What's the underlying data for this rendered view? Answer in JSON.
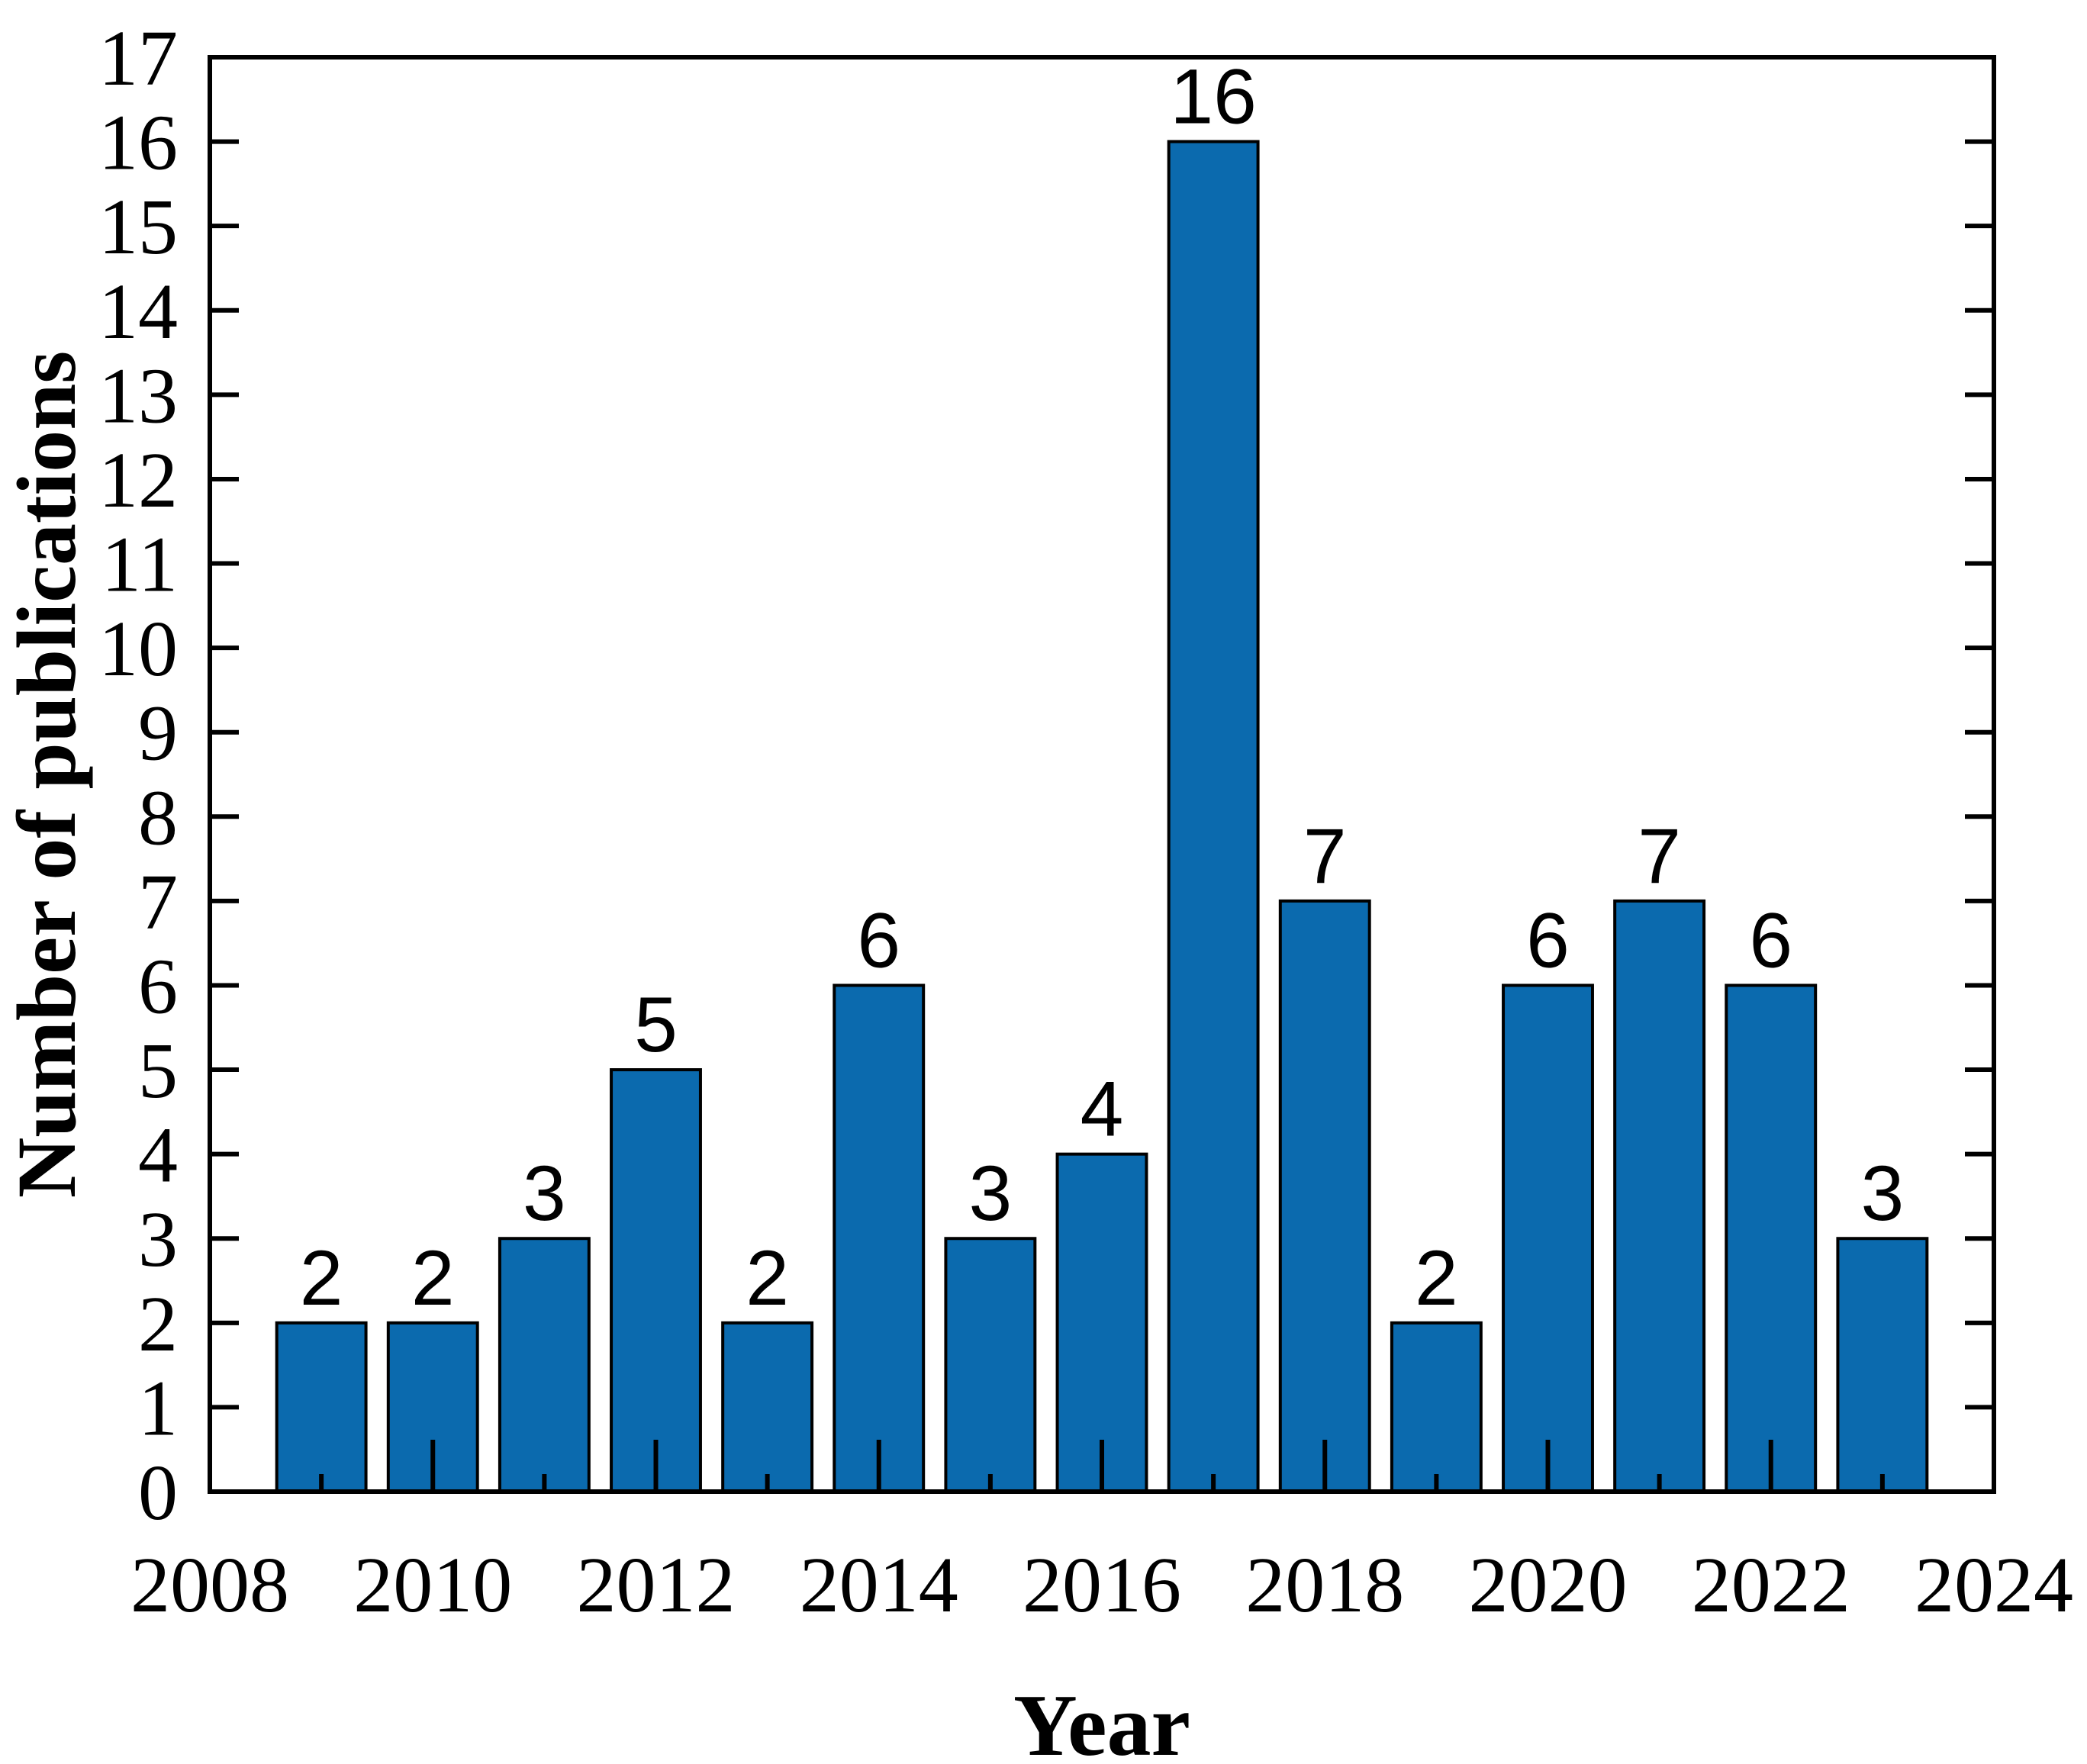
{
  "chart_data": {
    "type": "bar",
    "title": "",
    "xlabel": "Year",
    "ylabel": "Number of publications",
    "categories": [
      2009,
      2010,
      2011,
      2012,
      2013,
      2014,
      2015,
      2016,
      2017,
      2018,
      2019,
      2020,
      2021,
      2022,
      2023
    ],
    "values": [
      2,
      2,
      3,
      5,
      2,
      6,
      3,
      4,
      16,
      7,
      2,
      6,
      7,
      6,
      3
    ],
    "xlim": [
      2008,
      2024
    ],
    "ylim": [
      0,
      17
    ],
    "x_major_ticks": [
      2008,
      2010,
      2012,
      2014,
      2016,
      2018,
      2020,
      2022,
      2024
    ],
    "x_major_tick_labels": [
      "2008",
      "2010",
      "2012",
      "2014",
      "2016",
      "2018",
      "2020",
      "2022",
      "2024"
    ],
    "x_minor_ticks": [
      2009,
      2011,
      2013,
      2015,
      2017,
      2019,
      2021,
      2023
    ],
    "y_ticks": [
      0,
      1,
      2,
      3,
      4,
      5,
      6,
      7,
      8,
      9,
      10,
      11,
      12,
      13,
      14,
      15,
      16,
      17
    ],
    "y_tick_labels": [
      "0",
      "1",
      "2",
      "3",
      "4",
      "5",
      "6",
      "7",
      "8",
      "9",
      "10",
      "11",
      "12",
      "13",
      "14",
      "15",
      "16",
      "17"
    ],
    "grid": false,
    "legend": null,
    "bar_width_fraction": 0.8,
    "colors": {
      "bar_fill": "#0B6AAE",
      "bar_edge": "#000000",
      "frame": "#000000",
      "tick": "#000000",
      "text": "#000000",
      "background": "#FFFFFF"
    }
  }
}
